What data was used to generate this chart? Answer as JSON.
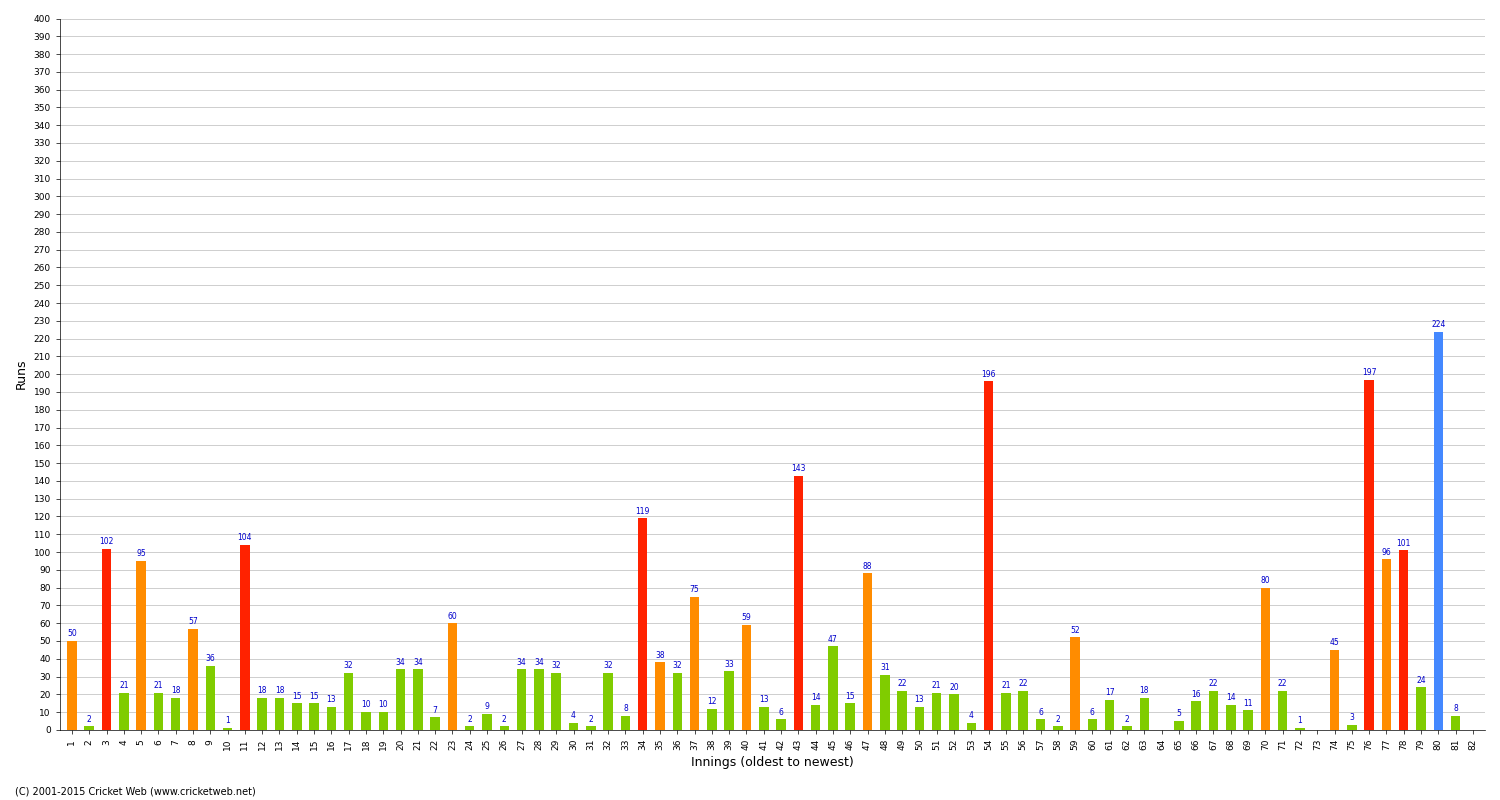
{
  "title": "",
  "xlabel": "Innings (oldest to newest)",
  "ylabel": "Runs",
  "footer": "(C) 2001-2015 Cricket Web (www.cricketweb.net)",
  "ylim": [
    0,
    400
  ],
  "yticks": [
    0,
    10,
    20,
    30,
    40,
    50,
    60,
    70,
    80,
    90,
    100,
    110,
    120,
    130,
    140,
    150,
    160,
    170,
    180,
    190,
    200,
    210,
    220,
    230,
    240,
    250,
    260,
    270,
    280,
    290,
    300,
    310,
    320,
    330,
    340,
    350,
    360,
    370,
    380,
    390,
    400
  ],
  "innings_data": [
    [
      50,
      "orange"
    ],
    [
      2,
      "green"
    ],
    [
      102,
      "red"
    ],
    [
      21,
      "green"
    ],
    [
      95,
      "orange"
    ],
    [
      21,
      "green"
    ],
    [
      18,
      "green"
    ],
    [
      57,
      "orange"
    ],
    [
      36,
      "green"
    ],
    [
      1,
      "green"
    ],
    [
      104,
      "red"
    ],
    [
      18,
      "green"
    ],
    [
      18,
      "green"
    ],
    [
      15,
      "green"
    ],
    [
      15,
      "green"
    ],
    [
      13,
      "green"
    ],
    [
      32,
      "green"
    ],
    [
      10,
      "green"
    ],
    [
      10,
      "green"
    ],
    [
      34,
      "green"
    ],
    [
      34,
      "green"
    ],
    [
      7,
      "green"
    ],
    [
      60,
      "orange"
    ],
    [
      2,
      "green"
    ],
    [
      9,
      "green"
    ],
    [
      2,
      "green"
    ],
    [
      34,
      "green"
    ],
    [
      34,
      "green"
    ],
    [
      32,
      "green"
    ],
    [
      4,
      "green"
    ],
    [
      2,
      "green"
    ],
    [
      32,
      "green"
    ],
    [
      8,
      "green"
    ],
    [
      119,
      "red"
    ],
    [
      38,
      "orange"
    ],
    [
      32,
      "green"
    ],
    [
      75,
      "orange"
    ],
    [
      12,
      "green"
    ],
    [
      33,
      "green"
    ],
    [
      59,
      "orange"
    ],
    [
      13,
      "green"
    ],
    [
      6,
      "green"
    ],
    [
      143,
      "red"
    ],
    [
      14,
      "green"
    ],
    [
      47,
      "green"
    ],
    [
      15,
      "green"
    ],
    [
      88,
      "orange"
    ],
    [
      31,
      "green"
    ],
    [
      22,
      "green"
    ],
    [
      13,
      "green"
    ],
    [
      21,
      "green"
    ],
    [
      20,
      "green"
    ],
    [
      4,
      "green"
    ],
    [
      196,
      "red"
    ],
    [
      21,
      "green"
    ],
    [
      22,
      "green"
    ],
    [
      6,
      "green"
    ],
    [
      2,
      "green"
    ],
    [
      52,
      "orange"
    ],
    [
      6,
      "green"
    ],
    [
      17,
      "green"
    ],
    [
      2,
      "green"
    ],
    [
      18,
      "green"
    ],
    [
      0,
      "green"
    ],
    [
      5,
      "green"
    ],
    [
      16,
      "green"
    ],
    [
      22,
      "green"
    ],
    [
      14,
      "green"
    ],
    [
      11,
      "green"
    ],
    [
      80,
      "orange"
    ],
    [
      22,
      "green"
    ],
    [
      1,
      "green"
    ],
    [
      0,
      "green"
    ],
    [
      45,
      "orange"
    ],
    [
      3,
      "green"
    ],
    [
      197,
      "red"
    ],
    [
      96,
      "orange"
    ],
    [
      101,
      "red"
    ],
    [
      24,
      "green"
    ],
    [
      224,
      "blue"
    ],
    [
      8,
      "green"
    ],
    [
      0,
      "green"
    ]
  ],
  "color_map": {
    "red": "#ff2200",
    "orange": "#ff8c00",
    "green": "#80cc00",
    "blue": "#4488ff"
  },
  "background_color": "#ffffff",
  "grid_color": "#bbbbbb",
  "bar_width": 0.55,
  "value_fontsize": 5.5,
  "tick_label_fontsize": 6.5,
  "axis_label_fontsize": 9,
  "footer_fontsize": 7
}
